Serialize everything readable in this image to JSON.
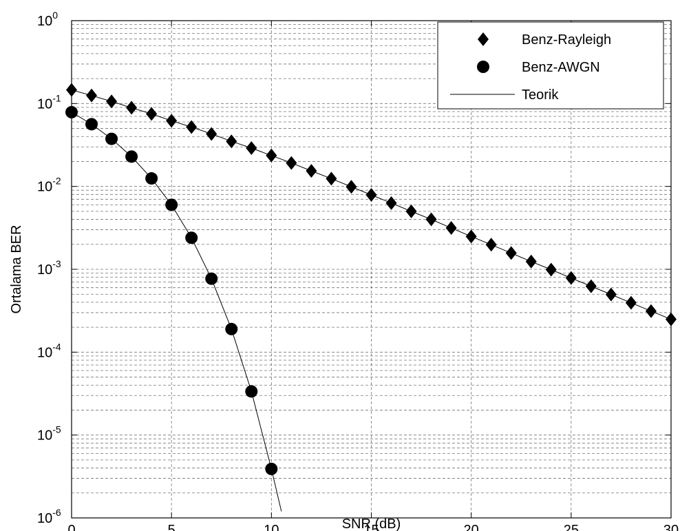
{
  "chart_data": {
    "type": "line",
    "title": "",
    "xlabel": "SNR (dB)",
    "ylabel": "Ortalama BER",
    "xlim": [
      0,
      30
    ],
    "ylim": [
      1e-06,
      1
    ],
    "y_scale": "log",
    "grid": true,
    "grid_style": "dashed",
    "legend_position": "top-right",
    "x_ticks": [
      0,
      5,
      10,
      15,
      20,
      25,
      30
    ],
    "y_ticks": [
      {
        "base": "10",
        "exp": "0",
        "value": 1
      },
      {
        "base": "10",
        "exp": "-1",
        "value": 0.1
      },
      {
        "base": "10",
        "exp": "-2",
        "value": 0.01
      },
      {
        "base": "10",
        "exp": "-3",
        "value": 0.001
      },
      {
        "base": "10",
        "exp": "-4",
        "value": 0.0001
      },
      {
        "base": "10",
        "exp": "-5",
        "value": 1e-05
      },
      {
        "base": "10",
        "exp": "-6",
        "value": 1e-06
      }
    ],
    "series": [
      {
        "name": "Benz-Rayleigh",
        "marker": "diamond",
        "color": "#000000",
        "x": [
          0,
          1,
          2,
          3,
          4,
          5,
          6,
          7,
          8,
          9,
          10,
          11,
          12,
          13,
          14,
          15,
          16,
          17,
          18,
          19,
          20,
          21,
          22,
          23,
          24,
          25,
          26,
          27,
          28,
          29,
          30
        ],
        "y": [
          0.146,
          0.125,
          0.106,
          0.089,
          0.075,
          0.062,
          0.052,
          0.043,
          0.035,
          0.029,
          0.0236,
          0.0192,
          0.0154,
          0.0124,
          0.0099,
          0.0079,
          0.0063,
          0.005,
          0.004,
          0.00315,
          0.00249,
          0.00198,
          0.00157,
          0.00124,
          0.00099,
          0.000785,
          0.000624,
          0.000496,
          0.000394,
          0.000313,
          0.000249
        ]
      },
      {
        "name": "Benz-AWGN",
        "marker": "circle",
        "color": "#000000",
        "x": [
          0,
          1,
          2,
          3,
          4,
          5,
          6,
          7,
          8,
          9,
          10
        ],
        "y": [
          0.0786,
          0.0563,
          0.0375,
          0.0229,
          0.0125,
          0.006,
          0.0024,
          0.00077,
          0.00019,
          3.36e-05,
          3.9e-06
        ]
      },
      {
        "name": "Teorik",
        "marker": "none",
        "color": "#000000",
        "style": "line",
        "x": [
          0,
          1,
          2,
          3,
          4,
          5,
          6,
          7,
          8,
          9,
          10,
          11,
          12,
          13,
          14,
          15,
          16,
          17,
          18,
          19,
          20,
          21,
          22,
          23,
          24,
          25,
          26,
          27,
          28,
          29,
          30
        ],
        "y": [
          0.146,
          0.125,
          0.106,
          0.089,
          0.075,
          0.062,
          0.052,
          0.043,
          0.035,
          0.029,
          0.0236,
          0.0192,
          0.0154,
          0.0124,
          0.0099,
          0.0079,
          0.0063,
          0.005,
          0.004,
          0.00315,
          0.00249,
          0.00198,
          0.00157,
          0.00124,
          0.00099,
          0.000785,
          0.000624,
          0.000496,
          0.000394,
          0.000313,
          0.000249
        ]
      },
      {
        "name": "Teorik",
        "marker": "none",
        "color": "#000000",
        "style": "line",
        "show_in_legend": false,
        "x": [
          0,
          1,
          2,
          3,
          4,
          5,
          6,
          7,
          8,
          9,
          10,
          10.5
        ],
        "y": [
          0.0786,
          0.0563,
          0.0375,
          0.0229,
          0.0125,
          0.006,
          0.0024,
          0.00077,
          0.00019,
          3.36e-05,
          3.9e-06,
          1.2e-06
        ]
      }
    ]
  }
}
